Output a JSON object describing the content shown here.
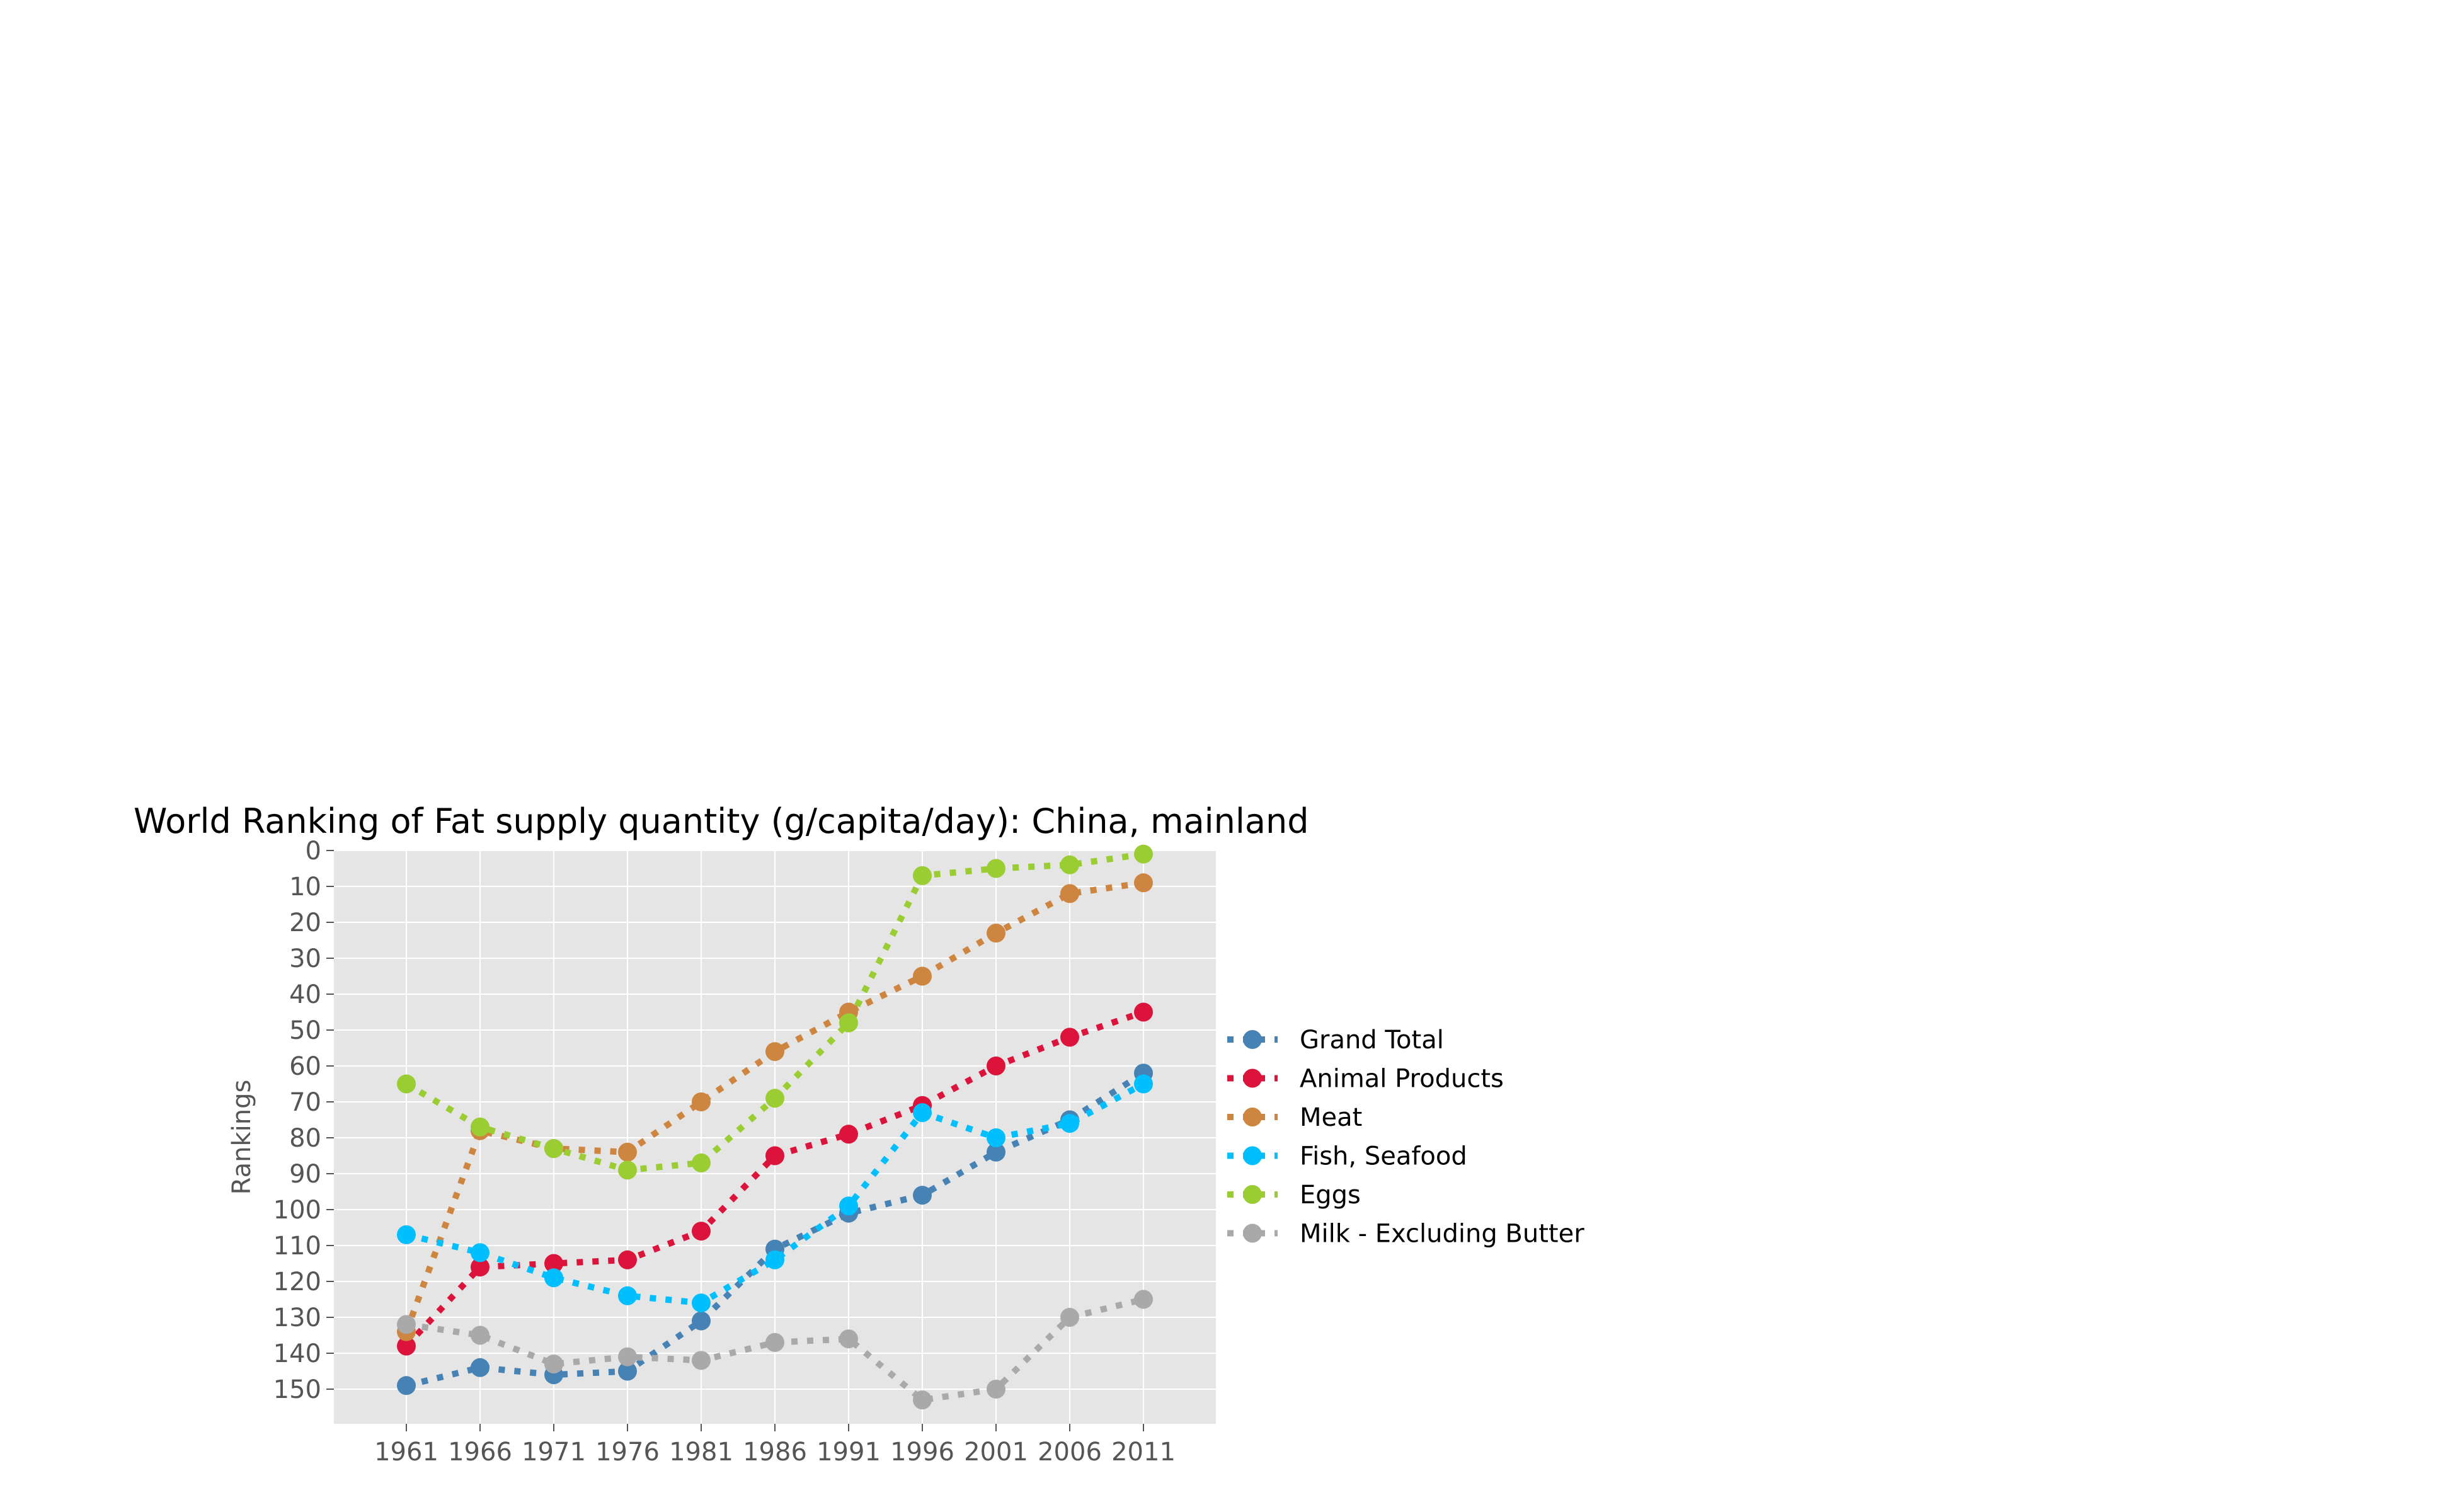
{
  "chart_data": {
    "type": "line",
    "title": "World Ranking of Fat supply quantity (g/capita/day): China, mainland",
    "xlabel": "",
    "ylabel": "Rankings",
    "x": [
      "1961",
      "1966",
      "1971",
      "1976",
      "1981",
      "1986",
      "1991",
      "1996",
      "2001",
      "2006",
      "2011"
    ],
    "yticks": [
      "0",
      "10",
      "20",
      "30",
      "40",
      "50",
      "60",
      "70",
      "80",
      "90",
      "100",
      "110",
      "120",
      "130",
      "140",
      "150"
    ],
    "ylim": [
      160,
      0
    ],
    "y_inverted": true,
    "grid": true,
    "legend_position": "right",
    "series": [
      {
        "name": "Grand Total",
        "color": "#4682B4",
        "values": [
          149,
          144,
          146,
          145,
          131,
          111,
          101,
          96,
          84,
          75,
          62
        ]
      },
      {
        "name": "Animal Products",
        "color": "#DC143C",
        "values": [
          138,
          116,
          115,
          114,
          106,
          85,
          79,
          71,
          60,
          52,
          45
        ]
      },
      {
        "name": "Meat",
        "color": "#CD853F",
        "values": [
          134,
          78,
          83,
          84,
          70,
          56,
          45,
          35,
          23,
          12,
          9
        ]
      },
      {
        "name": "Fish, Seafood",
        "color": "#00BFFF",
        "values": [
          107,
          112,
          119,
          124,
          126,
          114,
          99,
          73,
          80,
          76,
          65
        ]
      },
      {
        "name": "Eggs",
        "color": "#9ACD32",
        "values": [
          65,
          77,
          83,
          89,
          87,
          69,
          48,
          7,
          5,
          4,
          1
        ]
      },
      {
        "name": "Milk - Excluding Butter",
        "color": "#A9A9A9",
        "values": [
          132,
          135,
          143,
          141,
          142,
          137,
          136,
          153,
          150,
          130,
          125
        ]
      }
    ]
  }
}
